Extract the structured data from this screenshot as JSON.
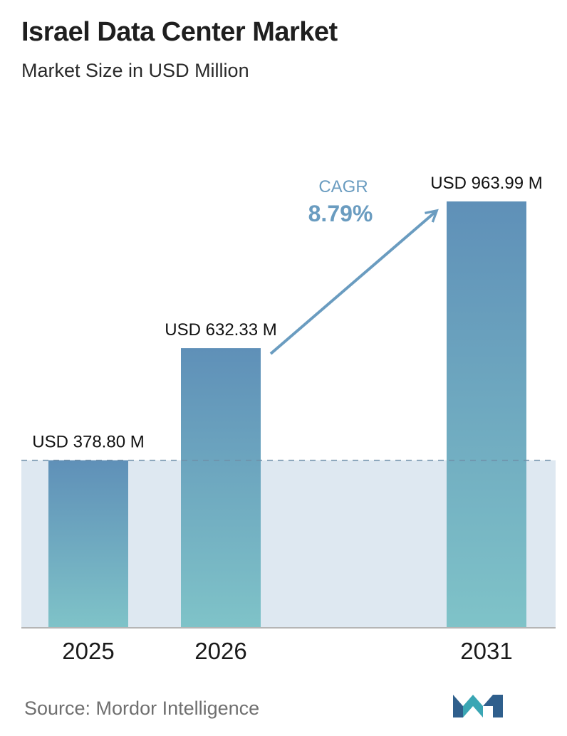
{
  "header": {
    "title": "Israel Data Center Market",
    "subtitle": "Market Size in USD Million"
  },
  "chart_data": {
    "type": "bar",
    "title": "Israel Data Center Market",
    "subtitle": "Market Size in USD Million",
    "categories": [
      "2025",
      "2026",
      "2031"
    ],
    "values": [
      378.8,
      632.33,
      963.99
    ],
    "value_labels": [
      "USD 378.80 M",
      "USD 632.33 M",
      "USD 963.99 M"
    ],
    "ylim": [
      0,
      963.99
    ],
    "grid": false,
    "reference_line": {
      "value": 378.8,
      "style": "dashed"
    },
    "annotation": {
      "label": "CAGR",
      "value": "8.79%"
    },
    "colors": {
      "bar_top": "#5f90b8",
      "bar_bottom": "#7fc3c8",
      "band": "#dee8f1",
      "accent": "#6a9cc0",
      "axis": "#b5b5b5"
    }
  },
  "footer": {
    "source": "Source:  Mordor Intelligence",
    "logo_icon": "mordor-intelligence-logo"
  }
}
